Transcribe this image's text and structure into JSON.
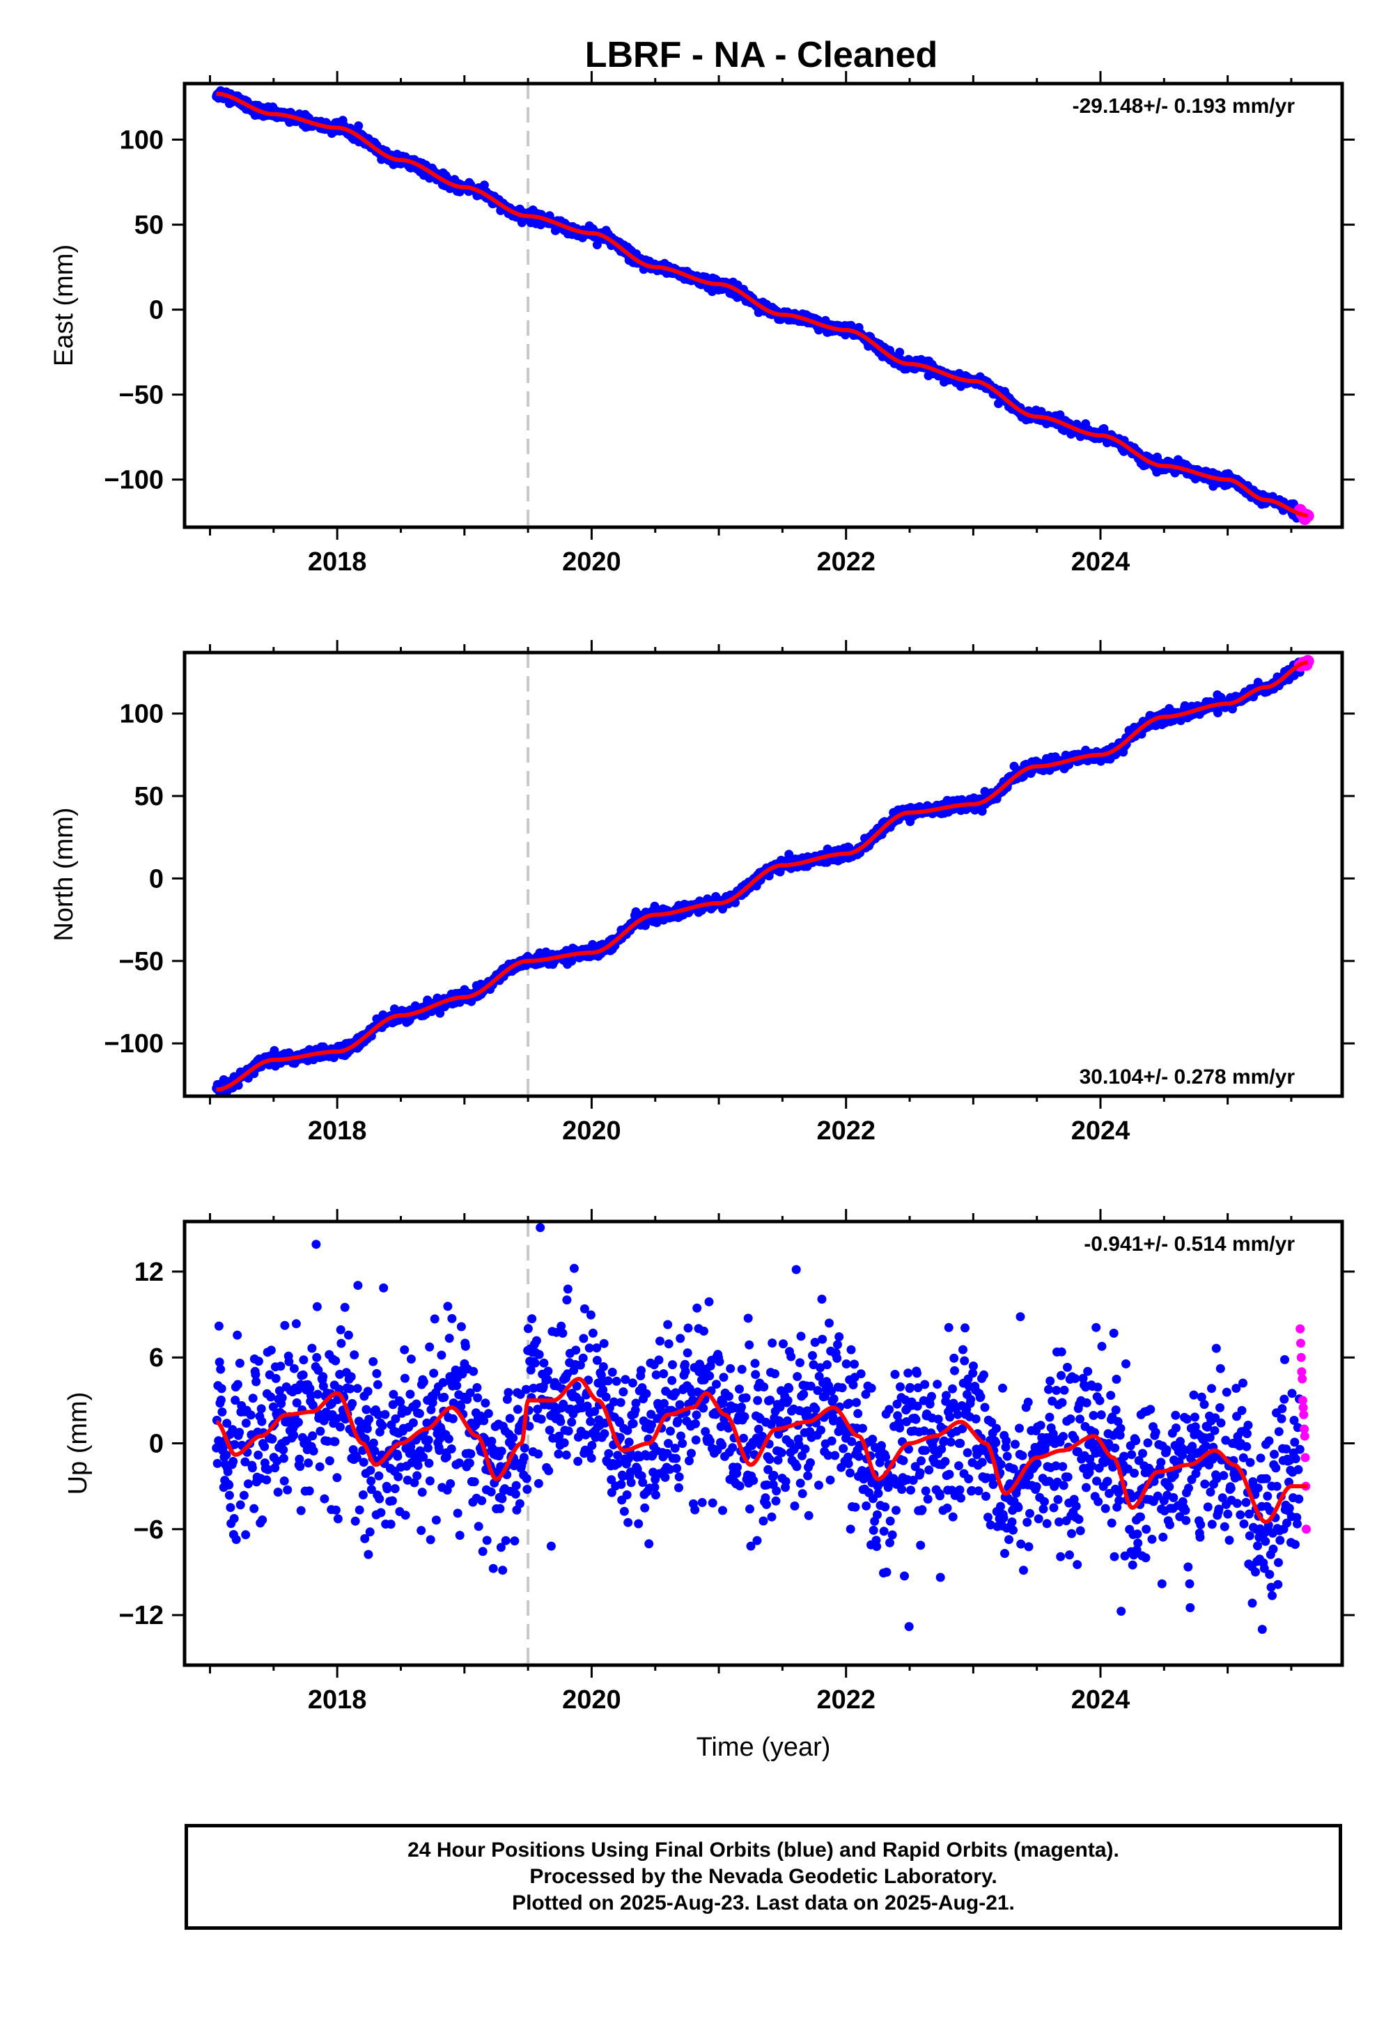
{
  "title": "LBRF  - NA - Cleaned",
  "caption": {
    "line1": "24 Hour Positions Using Final Orbits (blue) and Rapid Orbits (magenta).",
    "line2": "Processed by the Nevada Geodetic Laboratory.",
    "line3": "Plotted on 2025-Aug-23. Last data on 2025-Aug-21."
  },
  "colors": {
    "final_orbits": "#0000ff",
    "rapid_orbits": "#ff00ff",
    "model_fit": "#ff0000",
    "event_line": "#c8c8c8"
  },
  "chart_data": [
    {
      "type": "scatter",
      "name": "east",
      "ylabel": "East (mm)",
      "xlabel": "",
      "xlim": [
        2016.8,
        2025.9
      ],
      "ylim": [
        -128,
        133
      ],
      "xticks": [
        2018,
        2020,
        2022,
        2024
      ],
      "yticks": [
        -100,
        -50,
        0,
        50,
        100
      ],
      "rate_label": "-29.148+/- 0.193 mm/yr",
      "rate_position": "top-right",
      "event_line_x": 2019.5,
      "start": 2017.05,
      "end": 2025.63,
      "rapid_from": 2025.57,
      "trend_points": [
        [
          2017.05,
          127
        ],
        [
          2017.5,
          115
        ],
        [
          2018.0,
          107
        ],
        [
          2018.5,
          88
        ],
        [
          2019.0,
          72
        ],
        [
          2019.5,
          55
        ],
        [
          2020.0,
          45
        ],
        [
          2020.5,
          25
        ],
        [
          2021.0,
          15
        ],
        [
          2021.5,
          -3
        ],
        [
          2022.0,
          -12
        ],
        [
          2022.5,
          -32
        ],
        [
          2023.0,
          -42
        ],
        [
          2023.5,
          -63
        ],
        [
          2024.0,
          -74
        ],
        [
          2024.5,
          -92
        ],
        [
          2025.0,
          -100
        ],
        [
          2025.3,
          -112
        ],
        [
          2025.63,
          -121
        ]
      ],
      "noise_mm": 1.6
    },
    {
      "type": "scatter",
      "name": "north",
      "ylabel": "North (mm)",
      "xlabel": "",
      "xlim": [
        2016.8,
        2025.9
      ],
      "ylim": [
        -132,
        137
      ],
      "xticks": [
        2018,
        2020,
        2022,
        2024
      ],
      "yticks": [
        -100,
        -50,
        0,
        50,
        100
      ],
      "rate_label": "30.104+/- 0.278 mm/yr",
      "rate_position": "bottom-right",
      "event_line_x": 2019.5,
      "start": 2017.05,
      "end": 2025.63,
      "rapid_from": 2025.57,
      "trend_points": [
        [
          2017.05,
          -128
        ],
        [
          2017.5,
          -110
        ],
        [
          2018.0,
          -105
        ],
        [
          2018.5,
          -83
        ],
        [
          2019.0,
          -72
        ],
        [
          2019.5,
          -50
        ],
        [
          2020.0,
          -45
        ],
        [
          2020.5,
          -22
        ],
        [
          2021.0,
          -15
        ],
        [
          2021.5,
          8
        ],
        [
          2022.0,
          15
        ],
        [
          2022.5,
          40
        ],
        [
          2023.0,
          45
        ],
        [
          2023.5,
          68
        ],
        [
          2024.0,
          75
        ],
        [
          2024.5,
          98
        ],
        [
          2025.0,
          106
        ],
        [
          2025.3,
          116
        ],
        [
          2025.63,
          131
        ]
      ],
      "noise_mm": 1.8
    },
    {
      "type": "scatter",
      "name": "up",
      "ylabel": "Up (mm)",
      "xlabel": "Time (year)",
      "xlim": [
        2016.8,
        2025.9
      ],
      "ylim": [
        -15.5,
        15.5
      ],
      "xticks": [
        2018,
        2020,
        2022,
        2024
      ],
      "yticks": [
        -12,
        -6,
        0,
        6,
        12
      ],
      "rate_label": "-0.941+/- 0.514 mm/yr",
      "rate_position": "top-right",
      "event_line_x": 2019.5,
      "start": 2017.05,
      "end": 2025.63,
      "rapid_from": 2025.57,
      "trend_points": [
        [
          2017.05,
          1.5
        ],
        [
          2017.2,
          -0.8
        ],
        [
          2017.4,
          0.5
        ],
        [
          2017.6,
          2.0
        ],
        [
          2017.8,
          2.2
        ],
        [
          2018.0,
          3.5
        ],
        [
          2018.2,
          0.0
        ],
        [
          2018.3,
          -1.5
        ],
        [
          2018.5,
          0.0
        ],
        [
          2018.7,
          1.0
        ],
        [
          2018.9,
          2.5
        ],
        [
          2019.1,
          0.5
        ],
        [
          2019.25,
          -2.5
        ],
        [
          2019.45,
          0.0
        ],
        [
          2019.5,
          3.0
        ],
        [
          2019.7,
          3.0
        ],
        [
          2019.9,
          4.5
        ],
        [
          2020.05,
          3.0
        ],
        [
          2020.25,
          -0.5
        ],
        [
          2020.45,
          0.0
        ],
        [
          2020.6,
          2.0
        ],
        [
          2020.8,
          2.5
        ],
        [
          2020.9,
          3.5
        ],
        [
          2021.05,
          2.0
        ],
        [
          2021.25,
          -1.5
        ],
        [
          2021.45,
          1.0
        ],
        [
          2021.7,
          1.5
        ],
        [
          2021.9,
          2.5
        ],
        [
          2022.1,
          0.5
        ],
        [
          2022.25,
          -2.5
        ],
        [
          2022.5,
          0.0
        ],
        [
          2022.7,
          0.5
        ],
        [
          2022.9,
          1.5
        ],
        [
          2023.1,
          0.0
        ],
        [
          2023.25,
          -3.5
        ],
        [
          2023.5,
          -1.0
        ],
        [
          2023.7,
          -0.5
        ],
        [
          2023.95,
          0.5
        ],
        [
          2024.1,
          -1.0
        ],
        [
          2024.25,
          -4.5
        ],
        [
          2024.45,
          -2.0
        ],
        [
          2024.7,
          -1.5
        ],
        [
          2024.9,
          -0.5
        ],
        [
          2025.05,
          -1.5
        ],
        [
          2025.3,
          -5.5
        ],
        [
          2025.5,
          -3.0
        ],
        [
          2025.63,
          -3.0
        ]
      ],
      "noise_mm": 2.8,
      "rapid_values": [
        8.0,
        7.0,
        6.0,
        5.0,
        4.5,
        3.0,
        2.5,
        2.0,
        1.0,
        0.5,
        -1.0,
        -3.0,
        -6.0
      ]
    }
  ]
}
